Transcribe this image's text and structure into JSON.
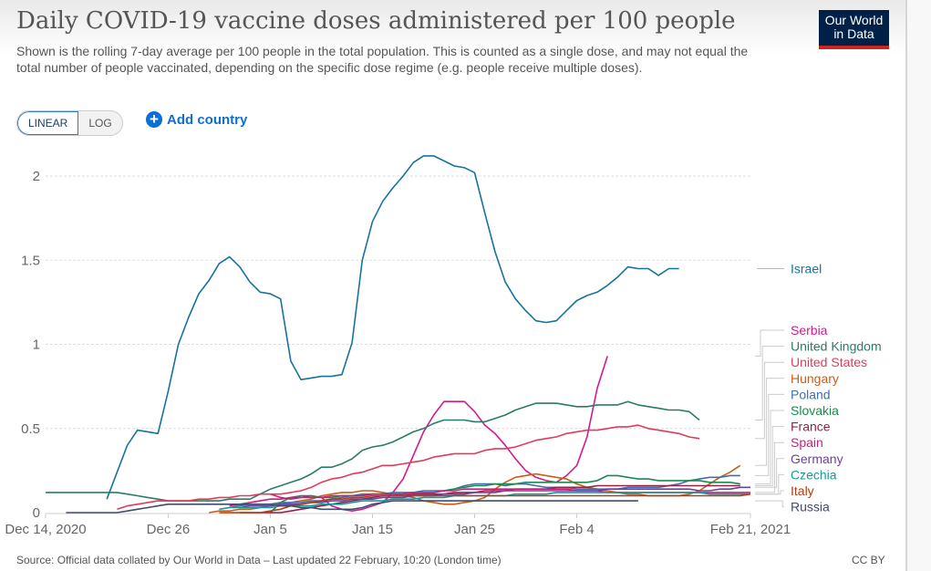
{
  "header": {
    "title": "Daily COVID-19 vaccine doses administered per 100 people",
    "subtitle": "Shown is the rolling 7-day average per 100 people in the total population. This is counted as a single dose, and may not equal the total number of people vaccinated, depending on the specific dose regime (e.g. people receive multiple doses).",
    "logo_line1": "Our World",
    "logo_line2": "in Data"
  },
  "controls": {
    "linear_label": "LINEAR",
    "log_label": "LOG",
    "active_scale": "linear",
    "add_country_label": "Add country",
    "add_country_icon": "plus-circle-icon"
  },
  "footer": {
    "source": "Source: Official data collated by Our World in Data – Last updated 22 February, 10:20 (London time)",
    "license": "CC BY"
  },
  "chart_data": {
    "type": "line",
    "title": "Daily COVID-19 vaccine doses administered per 100 people",
    "xlabel": "",
    "ylabel": "",
    "x_start": "2020-12-14",
    "x_end": "2021-02-21",
    "x_unit": "days since Dec 14, 2020",
    "xlim": [
      0,
      69
    ],
    "ylim": [
      0,
      2.1
    ],
    "grid": true,
    "legend_placement": "right (line labels)",
    "x_ticks": [
      {
        "day": 0,
        "label": "Dec 14, 2020"
      },
      {
        "day": 12,
        "label": "Dec 26"
      },
      {
        "day": 22,
        "label": "Jan 5"
      },
      {
        "day": 32,
        "label": "Jan 15"
      },
      {
        "day": 42,
        "label": "Jan 25"
      },
      {
        "day": 52,
        "label": "Feb 4"
      },
      {
        "day": 69,
        "label": "Feb 21, 2021"
      }
    ],
    "y_ticks": [
      {
        "value": 0,
        "label": "0"
      },
      {
        "value": 0.5,
        "label": "0.5"
      },
      {
        "value": 1,
        "label": "1"
      },
      {
        "value": 1.5,
        "label": "1.5"
      },
      {
        "value": 2,
        "label": "2"
      }
    ],
    "series": [
      {
        "name": "Israel",
        "color": "#16739c",
        "start_day": 6,
        "values": [
          0.08,
          0.24,
          0.4,
          0.49,
          0.48,
          0.47,
          0.72,
          1.0,
          1.16,
          1.3,
          1.38,
          1.48,
          1.52,
          1.46,
          1.37,
          1.31,
          1.3,
          1.27,
          0.9,
          0.79,
          0.8,
          0.81,
          0.81,
          0.82,
          1.01,
          1.5,
          1.73,
          1.85,
          1.93,
          2.0,
          2.08,
          2.12,
          2.12,
          2.09,
          2.06,
          2.05,
          2.02,
          1.78,
          1.55,
          1.37,
          1.27,
          1.2,
          1.14,
          1.13,
          1.14,
          1.2,
          1.26,
          1.29,
          1.31,
          1.35,
          1.4,
          1.46,
          1.45,
          1.45,
          1.41,
          1.45,
          1.45
        ]
      },
      {
        "name": "Serbia",
        "color": "#d21b8b",
        "start_day": 22,
        "values": [
          0.11,
          0.09,
          0.08,
          0.09,
          0.1,
          0.09,
          0.04,
          0.02,
          0.01,
          0.02,
          0.04,
          0.06,
          0.12,
          0.2,
          0.34,
          0.48,
          0.58,
          0.66,
          0.66,
          0.66,
          0.6,
          0.52,
          0.47,
          0.4,
          0.32,
          0.25,
          0.21,
          0.19,
          0.18,
          0.22,
          0.28,
          0.45,
          0.74,
          0.93
        ]
      },
      {
        "name": "United Kingdom",
        "color": "#2a7b67",
        "start_day": 0,
        "values": [
          0.12,
          0.12,
          0.12,
          0.12,
          0.12,
          0.12,
          0.12,
          0.12,
          0.11,
          0.1,
          0.09,
          0.08,
          0.07,
          0.07,
          0.07,
          0.07,
          0.07,
          0.07,
          0.08,
          0.08,
          0.08,
          0.11,
          0.14,
          0.16,
          0.18,
          0.2,
          0.23,
          0.27,
          0.27,
          0.29,
          0.32,
          0.37,
          0.39,
          0.4,
          0.42,
          0.45,
          0.48,
          0.5,
          0.53,
          0.55,
          0.55,
          0.55,
          0.54,
          0.54,
          0.56,
          0.58,
          0.61,
          0.63,
          0.65,
          0.65,
          0.65,
          0.64,
          0.63,
          0.63,
          0.64,
          0.64,
          0.64,
          0.66,
          0.64,
          0.63,
          0.62,
          0.61,
          0.61,
          0.6,
          0.55
        ]
      },
      {
        "name": "United States",
        "color": "#e03b58",
        "start_day": 7,
        "values": [
          0.02,
          0.04,
          0.05,
          0.06,
          0.07,
          0.07,
          0.07,
          0.07,
          0.08,
          0.08,
          0.09,
          0.09,
          0.1,
          0.1,
          0.11,
          0.11,
          0.11,
          0.12,
          0.13,
          0.15,
          0.18,
          0.2,
          0.21,
          0.23,
          0.24,
          0.26,
          0.28,
          0.28,
          0.29,
          0.3,
          0.31,
          0.33,
          0.34,
          0.35,
          0.35,
          0.35,
          0.37,
          0.38,
          0.38,
          0.39,
          0.41,
          0.43,
          0.44,
          0.45,
          0.47,
          0.48,
          0.49,
          0.49,
          0.5,
          0.51,
          0.51,
          0.52,
          0.5,
          0.49,
          0.48,
          0.47,
          0.45,
          0.44
        ]
      },
      {
        "name": "Hungary",
        "color": "#c95f17",
        "start_day": 16,
        "values": [
          0.0,
          0.01,
          0.01,
          0.02,
          0.02,
          0.03,
          0.04,
          0.05,
          0.06,
          0.07,
          0.08,
          0.1,
          0.11,
          0.12,
          0.12,
          0.13,
          0.13,
          0.12,
          0.11,
          0.1,
          0.09,
          0.07,
          0.06,
          0.05,
          0.05,
          0.06,
          0.07,
          0.09,
          0.14,
          0.18,
          0.21,
          0.22,
          0.23,
          0.22,
          0.21,
          0.2,
          0.17,
          0.15,
          0.14,
          0.13,
          0.12,
          0.11,
          0.11,
          0.1,
          0.1,
          0.1,
          0.1,
          0.11,
          0.13,
          0.17,
          0.21,
          0.24,
          0.28
        ]
      },
      {
        "name": "Poland",
        "color": "#3f6fae",
        "start_day": 18,
        "values": [
          0.03,
          0.04,
          0.05,
          0.05,
          0.05,
          0.06,
          0.06,
          0.06,
          0.07,
          0.07,
          0.08,
          0.09,
          0.1,
          0.11,
          0.11,
          0.11,
          0.12,
          0.12,
          0.12,
          0.13,
          0.13,
          0.13,
          0.14,
          0.16,
          0.17,
          0.17,
          0.17,
          0.16,
          0.17,
          0.17,
          0.16,
          0.15,
          0.15,
          0.15,
          0.14,
          0.14,
          0.14,
          0.14,
          0.14,
          0.15,
          0.15,
          0.15,
          0.15,
          0.16,
          0.17,
          0.19,
          0.2,
          0.21,
          0.21,
          0.22,
          0.22
        ]
      },
      {
        "name": "Slovakia",
        "color": "#1b8a4f",
        "start_day": 22,
        "values": [
          0.0,
          0.06,
          0.09,
          0.1,
          0.1,
          0.09,
          0.09,
          0.1,
          0.1,
          0.1,
          0.11,
          0.11,
          0.11,
          0.11,
          0.12,
          0.12,
          0.12,
          0.13,
          0.14,
          0.15,
          0.16,
          0.16,
          0.17,
          0.17,
          0.17,
          0.18,
          0.18,
          0.18,
          0.18,
          0.18,
          0.18,
          0.18,
          0.19,
          0.22,
          0.22,
          0.21,
          0.2,
          0.2,
          0.19,
          0.19,
          0.19,
          0.19,
          0.19,
          0.18,
          0.18,
          0.18,
          0.17
        ]
      },
      {
        "name": "France",
        "color": "#8e2348",
        "start_day": 19,
        "values": [
          0.0,
          0.0,
          0.0,
          0.0,
          0.0,
          0.01,
          0.02,
          0.03,
          0.04,
          0.05,
          0.06,
          0.07,
          0.08,
          0.09,
          0.1,
          0.1,
          0.1,
          0.11,
          0.11,
          0.11,
          0.11,
          0.12,
          0.12,
          0.12,
          0.13,
          0.13,
          0.13,
          0.14,
          0.14,
          0.14,
          0.14,
          0.15,
          0.15,
          0.15,
          0.15,
          0.16,
          0.16,
          0.16,
          0.16,
          0.16,
          0.16,
          0.16,
          0.16,
          0.16,
          0.16,
          0.16,
          0.16,
          0.16,
          0.16,
          0.16
        ]
      },
      {
        "name": "Spain",
        "color": "#cd1d79",
        "start_day": 18,
        "values": [
          0.04,
          0.05,
          0.06,
          0.07,
          0.08,
          0.08,
          0.09,
          0.09,
          0.09,
          0.09,
          0.1,
          0.1,
          0.1,
          0.1,
          0.11,
          0.11,
          0.11,
          0.11,
          0.12,
          0.12,
          0.12,
          0.13,
          0.13,
          0.14,
          0.14,
          0.14,
          0.14,
          0.14,
          0.14,
          0.14,
          0.14,
          0.14,
          0.14,
          0.14,
          0.13,
          0.13,
          0.13,
          0.12,
          0.12,
          0.12,
          0.12,
          0.12,
          0.12,
          0.12,
          0.12,
          0.12,
          0.12,
          0.12,
          0.12,
          0.12,
          0.12,
          0.12
        ]
      },
      {
        "name": "Germany",
        "color": "#6b3fa6",
        "start_day": 19,
        "values": [
          0.03,
          0.04,
          0.04,
          0.04,
          0.05,
          0.05,
          0.05,
          0.06,
          0.06,
          0.07,
          0.07,
          0.08,
          0.08,
          0.08,
          0.09,
          0.09,
          0.09,
          0.1,
          0.1,
          0.1,
          0.11,
          0.11,
          0.11,
          0.12,
          0.12,
          0.12,
          0.13,
          0.13,
          0.13,
          0.13,
          0.13,
          0.13,
          0.13,
          0.13,
          0.13,
          0.13,
          0.14,
          0.14,
          0.14,
          0.14,
          0.14,
          0.14,
          0.14,
          0.14,
          0.14,
          0.13,
          0.13,
          0.14,
          0.14,
          0.15,
          0.15
        ]
      },
      {
        "name": "Czechia",
        "color": "#139a96",
        "start_day": 17,
        "values": [
          0.02,
          0.03,
          0.03,
          0.03,
          0.03,
          0.03,
          0.04,
          0.04,
          0.04,
          0.04,
          0.05,
          0.05,
          0.05,
          0.06,
          0.07,
          0.07,
          0.07,
          0.08,
          0.08,
          0.08,
          0.09,
          0.09,
          0.09,
          0.1,
          0.1,
          0.1,
          0.1,
          0.1,
          0.1,
          0.11,
          0.11,
          0.11,
          0.11,
          0.12,
          0.12,
          0.12,
          0.12,
          0.12,
          0.12,
          0.12,
          0.12,
          0.12,
          0.12,
          0.12,
          0.12,
          0.12,
          0.12,
          0.12,
          0.11,
          0.11,
          0.11,
          0.11,
          0.11
        ]
      },
      {
        "name": "Italy",
        "color": "#b03c12",
        "start_day": 17,
        "values": [
          0.0,
          0.0,
          0.0,
          0.0,
          0.0,
          0.01,
          0.02,
          0.04,
          0.05,
          0.06,
          0.07,
          0.08,
          0.08,
          0.09,
          0.09,
          0.1,
          0.1,
          0.1,
          0.1,
          0.1,
          0.1,
          0.1,
          0.1,
          0.1,
          0.1,
          0.1,
          0.1,
          0.1,
          0.1,
          0.1,
          0.1,
          0.1,
          0.1,
          0.1,
          0.1,
          0.1,
          0.1,
          0.1,
          0.1,
          0.1,
          0.1,
          0.1,
          0.1,
          0.1,
          0.1,
          0.1,
          0.1,
          0.1,
          0.1,
          0.1,
          0.1,
          0.1,
          0.11
        ]
      },
      {
        "name": "Russia",
        "color": "#3f4d6a",
        "start_day": 2,
        "values": [
          0.0,
          0.0,
          0.0,
          0.0,
          0.0,
          0.0,
          0.01,
          0.02,
          0.03,
          0.04,
          0.05,
          0.05,
          0.05,
          0.05,
          0.05,
          0.05,
          0.05,
          0.05,
          0.05,
          0.05,
          0.05,
          0.04,
          0.04,
          0.03,
          0.03,
          0.02,
          0.02,
          0.02,
          0.02,
          0.03,
          0.05,
          0.06,
          0.07,
          0.07,
          0.07,
          0.07,
          0.07,
          0.07,
          0.07,
          0.07,
          0.07,
          0.07,
          0.07,
          0.07,
          0.07,
          0.07,
          0.07,
          0.07,
          0.07,
          0.07,
          0.07,
          0.07,
          0.07,
          0.07,
          0.07,
          0.07,
          0.07
        ]
      }
    ]
  }
}
